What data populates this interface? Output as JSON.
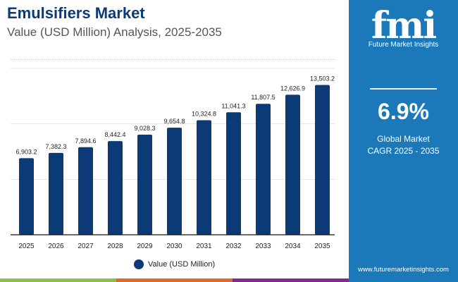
{
  "header": {
    "title": "Emulsifiers Market",
    "subtitle": "Value (USD Million) Analysis, 2025-2035"
  },
  "sidebar": {
    "logo_text": "fmi",
    "logo_subtitle": "Future Market Insights",
    "cagr_value": "6.9%",
    "cagr_label_1": "Global Market",
    "cagr_label_2": "CAGR 2025 - 2035",
    "url": "www.futuremarketinsights.com"
  },
  "colors": {
    "bar": "#0b3a77",
    "panel": "#1b78b9",
    "strip": [
      "#8cc04b",
      "#e06a2c",
      "#7b2f86"
    ]
  },
  "chart_data": {
    "type": "bar",
    "title": "Emulsifiers Market",
    "subtitle": "Value (USD Million) Analysis, 2025-2035",
    "categories": [
      "2025",
      "2026",
      "2027",
      "2028",
      "2029",
      "2030",
      "2031",
      "2032",
      "2033",
      "2034",
      "2035"
    ],
    "series": [
      {
        "name": "Value (USD Million)",
        "values": [
          6903.2,
          7382.3,
          7894.6,
          8442.4,
          9028.3,
          9654.8,
          10324.8,
          11041.3,
          11807.5,
          12626.9,
          13503.2
        ]
      }
    ],
    "data_labels": [
      "6,903.2",
      "7,382.3",
      "7,894.6",
      "8,442.4",
      "9,028.3",
      "9,654.8",
      "10,324.8",
      "11,041.3",
      "11,807.5",
      "12,626.9",
      "13,503.2"
    ],
    "ylim": [
      0,
      15000
    ],
    "grid": true,
    "legend": "bottom"
  }
}
